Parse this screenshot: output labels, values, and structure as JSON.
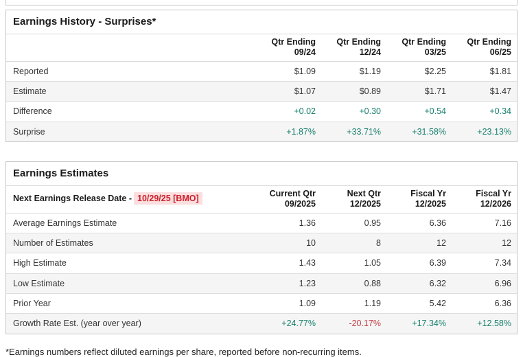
{
  "colors": {
    "positive": "#17806d",
    "negative": "#c23b42",
    "date_red": "#cc1f2c",
    "date_bg": "#fbdfdf"
  },
  "history": {
    "title": "Earnings History - Surprises*",
    "columns": [
      {
        "line1": "Qtr Ending",
        "line2": "09/24"
      },
      {
        "line1": "Qtr Ending",
        "line2": "12/24"
      },
      {
        "line1": "Qtr Ending",
        "line2": "03/25"
      },
      {
        "line1": "Qtr Ending",
        "line2": "06/25"
      }
    ],
    "rows": [
      {
        "label": "Reported",
        "values": [
          "$1.09",
          "$1.19",
          "$2.25",
          "$1.81"
        ]
      },
      {
        "label": "Estimate",
        "values": [
          "$1.07",
          "$0.89",
          "$1.71",
          "$1.47"
        ]
      },
      {
        "label": "Difference",
        "values": [
          "+0.02",
          "+0.30",
          "+0.54",
          "+0.34"
        ]
      },
      {
        "label": "Surprise",
        "values": [
          "+1.87%",
          "+33.71%",
          "+31.58%",
          "+23.13%"
        ]
      }
    ]
  },
  "estimates": {
    "title": "Earnings Estimates",
    "release_label": "Next Earnings Release Date -",
    "release_date": "10/29/25 [BMO]",
    "columns": [
      {
        "line1": "Current Qtr",
        "line2": "09/2025"
      },
      {
        "line1": "Next Qtr",
        "line2": "12/2025"
      },
      {
        "line1": "Fiscal Yr",
        "line2": "12/2025"
      },
      {
        "line1": "Fiscal Yr",
        "line2": "12/2026"
      }
    ],
    "rows": [
      {
        "label": "Average Earnings Estimate",
        "values": [
          "1.36",
          "0.95",
          "6.36",
          "7.16"
        ]
      },
      {
        "label": "Number of Estimates",
        "values": [
          "10",
          "8",
          "12",
          "12"
        ]
      },
      {
        "label": "High Estimate",
        "values": [
          "1.43",
          "1.05",
          "6.39",
          "7.34"
        ]
      },
      {
        "label": "Low Estimate",
        "values": [
          "1.23",
          "0.88",
          "6.32",
          "6.96"
        ]
      },
      {
        "label": "Prior Year",
        "values": [
          "1.09",
          "1.19",
          "5.42",
          "6.36"
        ]
      },
      {
        "label": "Growth Rate Est. (year over year)",
        "values": [
          "+24.77%",
          "-20.17%",
          "+17.34%",
          "+12.58%"
        ]
      }
    ]
  },
  "footnote": "*Earnings numbers reflect diluted earnings per share, reported before non-recurring items."
}
